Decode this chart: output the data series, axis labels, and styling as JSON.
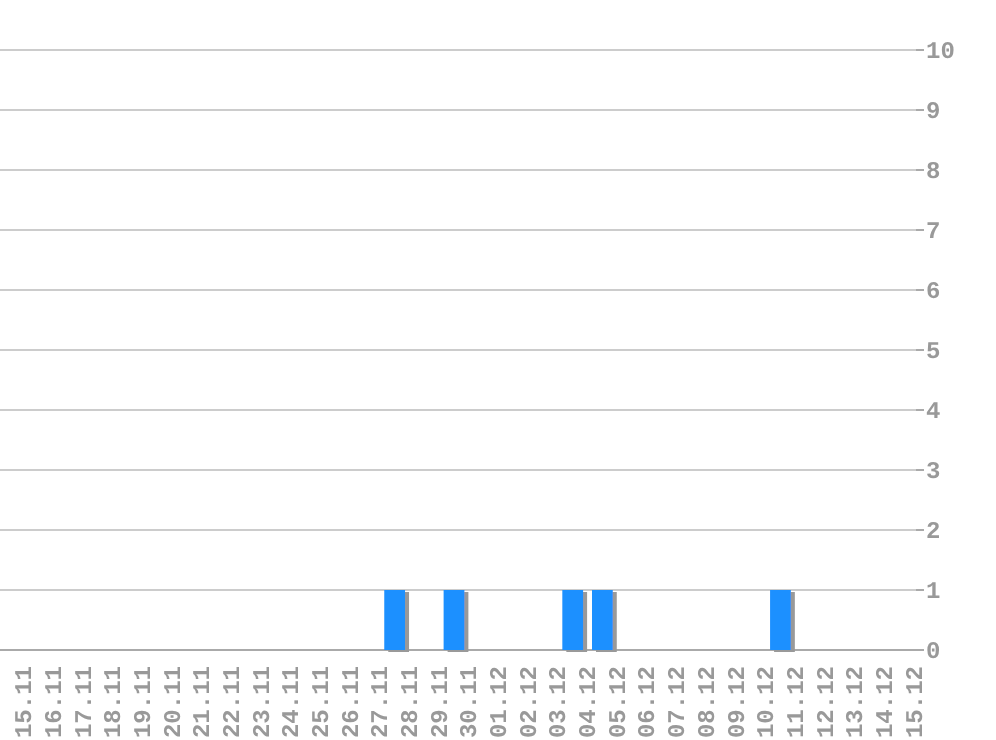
{
  "chart_data": {
    "type": "bar",
    "categories": [
      "15.11",
      "16.11",
      "17.11",
      "18.11",
      "19.11",
      "20.11",
      "21.11",
      "22.11",
      "23.11",
      "24.11",
      "25.11",
      "26.11",
      "27.11",
      "28.11",
      "29.11",
      "30.11",
      "01.12",
      "02.12",
      "03.12",
      "04.12",
      "05.12",
      "06.12",
      "07.12",
      "08.12",
      "09.12",
      "10.12",
      "11.12",
      "12.12",
      "13.12",
      "14.12",
      "15.12"
    ],
    "values": [
      0,
      0,
      0,
      0,
      0,
      0,
      0,
      0,
      0,
      0,
      0,
      0,
      0,
      1,
      0,
      1,
      0,
      0,
      0,
      1,
      1,
      0,
      0,
      0,
      0,
      0,
      1,
      0,
      0,
      0,
      0
    ],
    "color": "#1e90ff",
    "ylim": [
      0,
      10
    ],
    "yticks": [
      0,
      1,
      2,
      3,
      4,
      5,
      6,
      7,
      8,
      9,
      10
    ],
    "grid": "y"
  }
}
